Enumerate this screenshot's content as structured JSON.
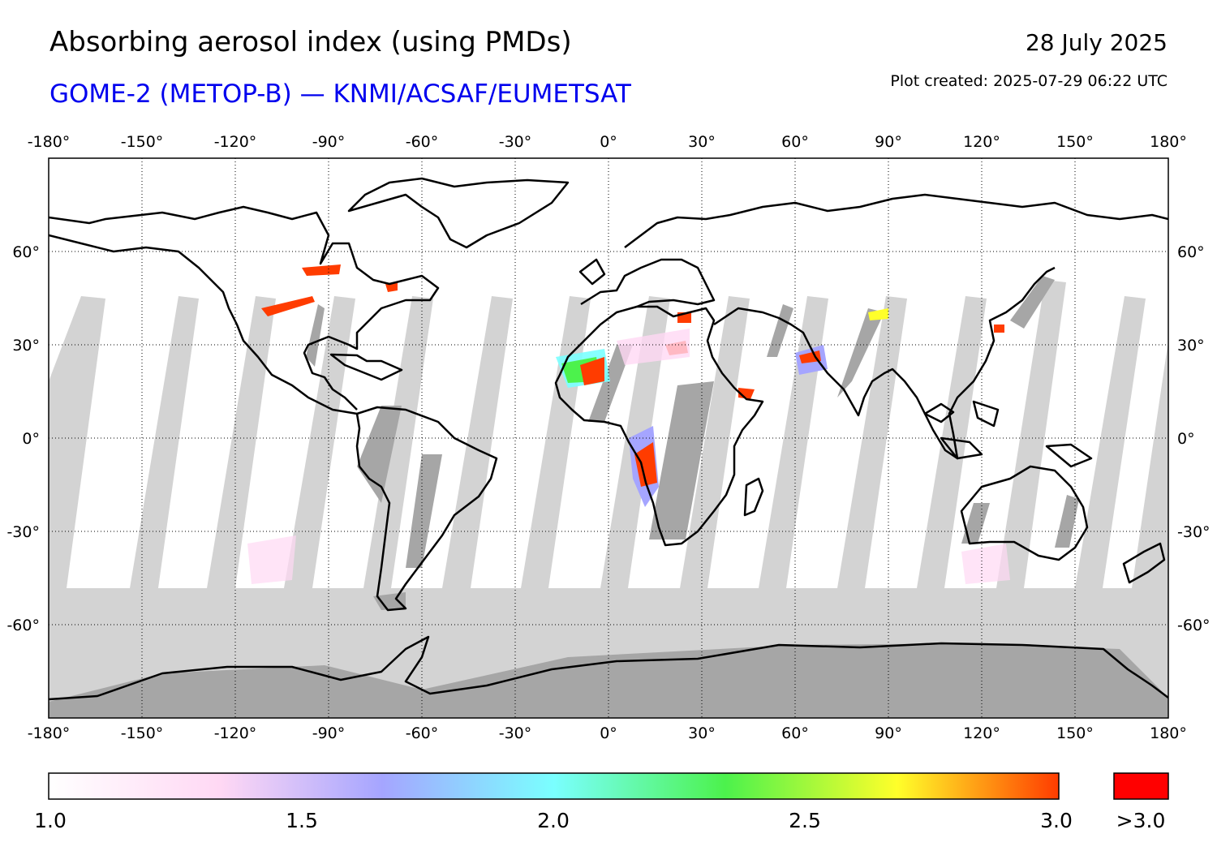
{
  "header": {
    "title": "Absorbing aerosol index (using PMDs)",
    "subtitle": "GOME-2 (METOP-B) — KNMI/ACSAF/EUMETSAT",
    "date": "28 July 2025",
    "plot_created": "Plot created: 2025-07-29 06:22 UTC"
  },
  "map": {
    "projection": "equirectangular",
    "lon_range": [
      -180,
      180
    ],
    "lat_range": [
      -90,
      90
    ],
    "lon_ticks": [
      "-180°",
      "-150°",
      "-120°",
      "-90°",
      "-60°",
      "-30°",
      "0°",
      "30°",
      "60°",
      "90°",
      "120°",
      "150°",
      "180°"
    ],
    "lat_ticks": [
      "60°",
      "30°",
      "0°",
      "-30°",
      "-60°"
    ],
    "grid": true,
    "colors": {
      "no_data": "#d3d3d3",
      "no_data_land": "#a6a6a6",
      "coastline": "#000000",
      "high": "#ff3c00"
    }
  },
  "colorbar": {
    "min": 1.0,
    "max": 3.0,
    "tick_labels": [
      "1.0",
      "1.5",
      "2.0",
      "2.5",
      "3.0"
    ],
    "over_label": ">3.0",
    "over_color": "#ff0000",
    "stops": [
      "#ffffff",
      "#ffd8f4",
      "#a5a5ff",
      "#7affff",
      "#4cf24c",
      "#ffff2a",
      "#ff3c00"
    ]
  }
}
